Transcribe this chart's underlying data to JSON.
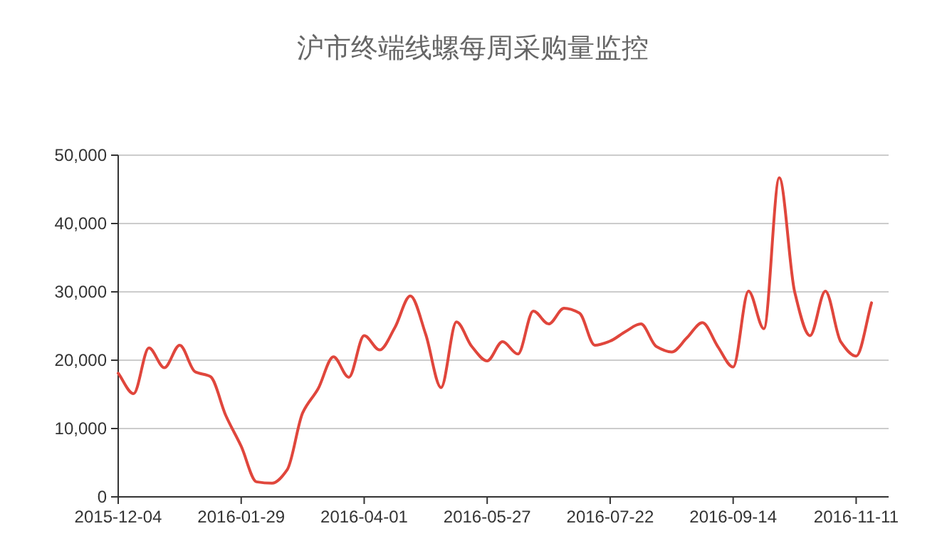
{
  "chart_data": {
    "type": "line",
    "title": "沪市终端线螺每周采购量监控",
    "categories": [
      "2015-12-04",
      null,
      null,
      null,
      null,
      null,
      null,
      null,
      "2016-01-29",
      null,
      null,
      null,
      null,
      null,
      null,
      null,
      "2016-04-01",
      null,
      null,
      null,
      null,
      null,
      null,
      null,
      "2016-05-27",
      null,
      null,
      null,
      null,
      null,
      null,
      null,
      "2016-07-22",
      null,
      null,
      null,
      null,
      null,
      null,
      null,
      "2016-09-14",
      null,
      null,
      null,
      null,
      null,
      null,
      null,
      "2016-11-11",
      null
    ],
    "series": [
      {
        "color": "#e0463c",
        "values": [
          18100,
          15100,
          21800,
          18900,
          22200,
          18300,
          17600,
          11900,
          7400,
          2200,
          2000,
          4000,
          12300,
          15800,
          20500,
          17500,
          23600,
          21500,
          24800,
          29400,
          23800,
          16000,
          25600,
          22000,
          19900,
          22700,
          20900,
          27200,
          25300,
          27600,
          26900,
          22200,
          22800,
          24200,
          25300,
          22000,
          21200,
          23300,
          25500,
          22000,
          19000,
          30100,
          24600,
          46700,
          30000,
          23600,
          30100,
          22700,
          20600,
          28400
        ]
      }
    ],
    "ylim": [
      0,
      50000
    ],
    "yticks": [
      {
        "value": 0,
        "label": "0"
      },
      {
        "value": 10000,
        "label": "10,000"
      },
      {
        "value": 20000,
        "label": "20,000"
      },
      {
        "value": 30000,
        "label": "30,000"
      },
      {
        "value": 40000,
        "label": "40,000"
      },
      {
        "value": 50000,
        "label": "50,000"
      }
    ],
    "grid": "y",
    "line_style": "solid"
  }
}
